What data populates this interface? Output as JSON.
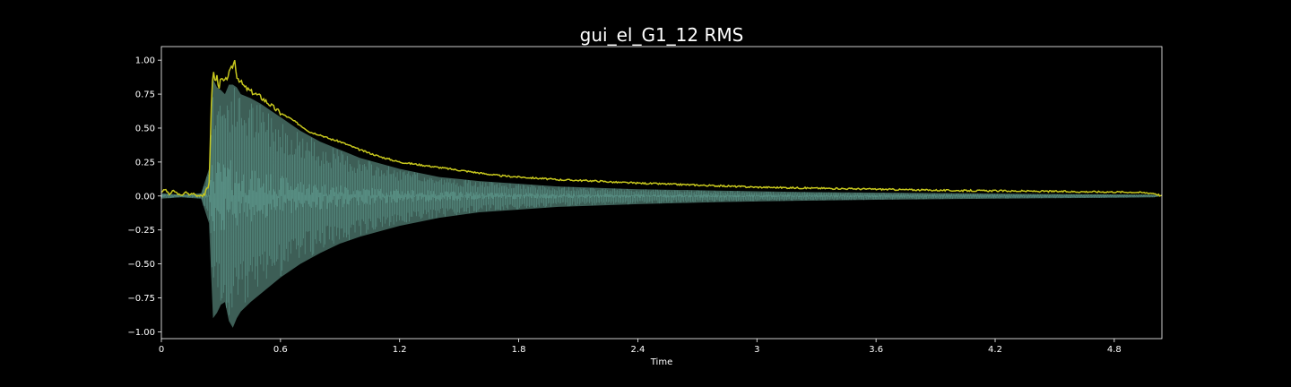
{
  "chart_data": {
    "type": "line",
    "title": "gui_el_G1_12 RMS",
    "xlabel": "Time",
    "ylabel": "",
    "xlim": [
      0,
      5.04
    ],
    "ylim": [
      -1.05,
      1.1
    ],
    "x_ticks": [
      {
        "value": 0,
        "label": "0"
      },
      {
        "value": 0.6,
        "label": "0.6"
      },
      {
        "value": 1.2,
        "label": "1.2"
      },
      {
        "value": 1.8,
        "label": "1.8"
      },
      {
        "value": 2.4,
        "label": "2.4"
      },
      {
        "value": 3.0,
        "label": "3"
      },
      {
        "value": 3.6,
        "label": "3.6"
      },
      {
        "value": 4.2,
        "label": "4.2"
      },
      {
        "value": 4.8,
        "label": "4.8"
      }
    ],
    "y_ticks": [
      {
        "value": 1.0,
        "label": "1.00"
      },
      {
        "value": 0.75,
        "label": "0.75"
      },
      {
        "value": 0.5,
        "label": "0.50"
      },
      {
        "value": 0.25,
        "label": "0.25"
      },
      {
        "value": 0.0,
        "label": "0.00"
      },
      {
        "value": -0.25,
        "label": "−0.25"
      },
      {
        "value": -0.5,
        "label": "−0.50"
      },
      {
        "value": -0.75,
        "label": "−0.75"
      },
      {
        "value": -1.0,
        "label": "−1.00"
      }
    ],
    "grid": false,
    "colors": {
      "background": "#000000",
      "rms": "#c8c81e",
      "waveform": "#5e9a8e",
      "waveform_fill": "#3d5e56",
      "axes": "#ffffff",
      "text": "#ffffff"
    },
    "series": [
      {
        "kind": "rms",
        "x": [
          0.0,
          0.02,
          0.04,
          0.06,
          0.08,
          0.1,
          0.12,
          0.14,
          0.16,
          0.18,
          0.2,
          0.22,
          0.24,
          0.25,
          0.26,
          0.27,
          0.28,
          0.29,
          0.3,
          0.32,
          0.34,
          0.36,
          0.37,
          0.38,
          0.4,
          0.42,
          0.45,
          0.5,
          0.55,
          0.6,
          0.65,
          0.7,
          0.75,
          0.8,
          0.85,
          0.9,
          1.0,
          1.1,
          1.2,
          1.3,
          1.4,
          1.5,
          1.6,
          1.7,
          1.8,
          1.9,
          2.0,
          2.1,
          2.2,
          2.3,
          2.4,
          2.5,
          2.6,
          2.7,
          2.8,
          2.9,
          3.0,
          3.2,
          3.4,
          3.6,
          3.8,
          4.0,
          4.2,
          4.4,
          4.6,
          4.8,
          4.9,
          5.0,
          5.04
        ],
        "y": [
          0.03,
          0.05,
          0.01,
          0.04,
          0.02,
          0.0,
          0.03,
          0.01,
          0.02,
          0.0,
          0.01,
          0.02,
          0.07,
          0.6,
          0.94,
          0.84,
          0.88,
          0.8,
          0.86,
          0.84,
          0.9,
          0.96,
          1.0,
          0.88,
          0.84,
          0.8,
          0.77,
          0.73,
          0.67,
          0.61,
          0.57,
          0.52,
          0.47,
          0.45,
          0.42,
          0.4,
          0.34,
          0.29,
          0.25,
          0.23,
          0.21,
          0.19,
          0.17,
          0.15,
          0.14,
          0.13,
          0.12,
          0.115,
          0.11,
          0.1,
          0.095,
          0.09,
          0.085,
          0.08,
          0.075,
          0.07,
          0.065,
          0.06,
          0.055,
          0.05,
          0.045,
          0.04,
          0.038,
          0.035,
          0.032,
          0.03,
          0.028,
          0.02,
          0.0
        ]
      },
      {
        "kind": "waveform-envelope",
        "x": [
          0.0,
          0.1,
          0.2,
          0.24,
          0.26,
          0.28,
          0.3,
          0.32,
          0.34,
          0.36,
          0.38,
          0.4,
          0.45,
          0.5,
          0.6,
          0.7,
          0.8,
          0.9,
          1.0,
          1.2,
          1.4,
          1.6,
          1.8,
          2.0,
          2.4,
          2.8,
          3.2,
          3.6,
          4.0,
          4.4,
          4.8,
          5.0,
          5.04
        ],
        "upper": [
          0.02,
          0.01,
          0.02,
          0.2,
          0.86,
          0.8,
          0.78,
          0.75,
          0.82,
          0.82,
          0.8,
          0.75,
          0.72,
          0.68,
          0.58,
          0.48,
          0.4,
          0.34,
          0.28,
          0.2,
          0.14,
          0.11,
          0.09,
          0.07,
          0.05,
          0.04,
          0.03,
          0.025,
          0.02,
          0.015,
          0.012,
          0.01,
          0.0
        ],
        "lower": [
          -0.02,
          -0.01,
          -0.02,
          -0.2,
          -0.9,
          -0.86,
          -0.8,
          -0.78,
          -0.92,
          -0.97,
          -0.9,
          -0.85,
          -0.78,
          -0.72,
          -0.6,
          -0.5,
          -0.42,
          -0.35,
          -0.3,
          -0.22,
          -0.16,
          -0.12,
          -0.1,
          -0.08,
          -0.06,
          -0.045,
          -0.035,
          -0.028,
          -0.022,
          -0.017,
          -0.013,
          -0.01,
          0.0
        ],
        "inner": [
          0.01,
          0.005,
          0.01,
          0.05,
          0.3,
          0.28,
          0.26,
          0.25,
          0.27,
          0.26,
          0.24,
          0.22,
          0.2,
          0.18,
          0.15,
          0.12,
          0.1,
          0.085,
          0.07,
          0.05,
          0.04,
          0.03,
          0.025,
          0.02,
          0.015,
          0.012,
          0.01,
          0.008,
          0.006,
          0.005,
          0.004,
          0.003,
          0.0
        ]
      }
    ]
  }
}
